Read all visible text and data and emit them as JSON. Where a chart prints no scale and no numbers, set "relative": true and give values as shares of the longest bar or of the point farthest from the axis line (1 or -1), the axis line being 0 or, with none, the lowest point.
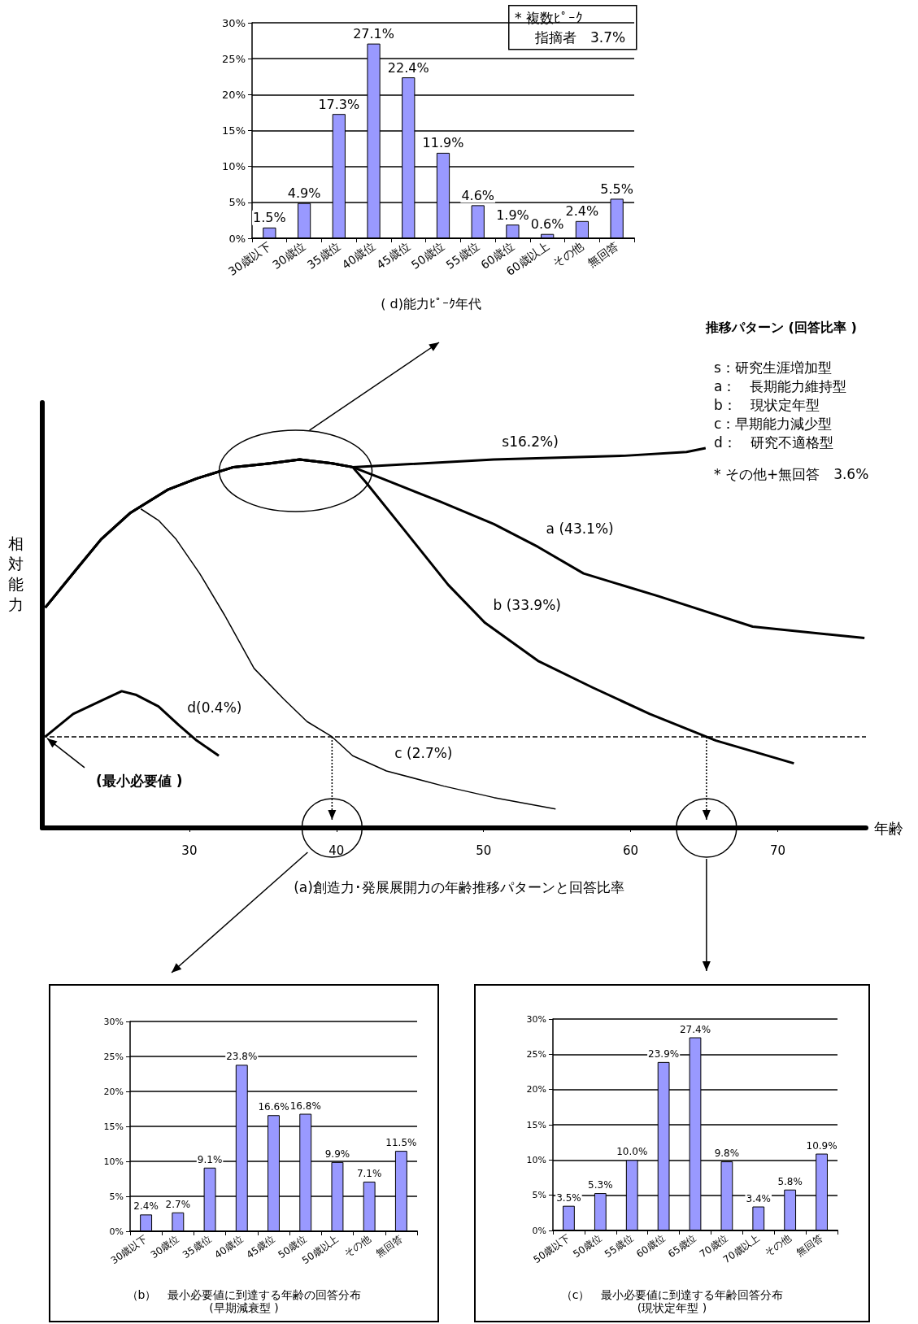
{
  "chart_data": [
    {
      "type": "bar",
      "title": "( d)能力ﾋﾟｰｸ年代",
      "categories": [
        "30歳以下",
        "30歳位",
        "35歳位",
        "40歳位",
        "45歳位",
        "50歳位",
        "55歳位",
        "60歳位",
        "60歳以上",
        "その他",
        "無回答"
      ],
      "values": [
        1.5,
        4.9,
        17.3,
        27.1,
        22.4,
        11.9,
        4.6,
        1.9,
        0.6,
        2.4,
        5.5
      ],
      "value_labels": [
        "1.5%",
        "4.9%",
        "17.3%",
        "27.1%",
        "22.4%",
        "11.9%",
        "4.6%",
        "1.9%",
        "0.6%",
        "2.4%",
        "5.5%"
      ],
      "color": "#9999ff",
      "ylim": [
        0,
        30
      ],
      "yticks": [
        {
          "value": 0,
          "label": "0%"
        },
        {
          "value": 5,
          "label": "5%"
        },
        {
          "value": 10,
          "label": "10%"
        },
        {
          "value": 15,
          "label": "15%"
        },
        {
          "value": 20,
          "label": "20%"
        },
        {
          "value": 25,
          "label": "25%"
        },
        {
          "value": 30,
          "label": "30%"
        }
      ],
      "grid": "y",
      "annotations": [
        "* 複数ﾋﾟｰｸ",
        "指摘者　3.7%"
      ]
    },
    {
      "type": "line",
      "title": "(a)創造力･発展展開力の年齢推移パターンと回答比率",
      "xlabel": "年齢",
      "ylabel": "相対能力",
      "relative": true,
      "marker": "none",
      "xlim": [
        20,
        76
      ],
      "xticks": [
        30,
        40,
        50,
        60,
        70
      ],
      "series": [
        {
          "name": "s16.2%)",
          "color": "#000000",
          "x": [
            20.2,
            22.3,
            24.0,
            26.0,
            28.5,
            30.5,
            33.0,
            35.5,
            37.5,
            39.7,
            41.1,
            50.7,
            59.6,
            63.8,
            65.1
          ],
          "values": [
            0.58,
            0.68,
            0.76,
            0.83,
            0.89,
            0.92,
            0.95,
            0.96,
            0.97,
            0.96,
            0.95,
            0.97,
            0.98,
            0.99,
            1
          ]
        },
        {
          "name": "a (43.1%)",
          "color": "#000000",
          "x": [
            20.2,
            22.3,
            24.0,
            26.0,
            28.5,
            30.5,
            33.0,
            35.5,
            37.5,
            39.7,
            41.1,
            43.1,
            47.0,
            50.7,
            53.7,
            56.8,
            61.9,
            68.3,
            75.9
          ],
          "values": [
            0.58,
            0.68,
            0.76,
            0.83,
            0.89,
            0.92,
            0.95,
            0.96,
            0.97,
            0.96,
            0.95,
            0.92,
            0.86,
            0.8,
            0.74,
            0.67,
            0.61,
            0.53,
            0.5
          ]
        },
        {
          "name": "b (33.9%)",
          "color": "#000000",
          "x": [
            20.2,
            22.3,
            24.0,
            26.0,
            28.5,
            30.5,
            33.0,
            35.5,
            37.5,
            39.7,
            41.1,
            42.0,
            44.5,
            47.6,
            50.1,
            53.7,
            57.4,
            61.3,
            65.8,
            71.1
          ],
          "values": [
            0.58,
            0.68,
            0.76,
            0.83,
            0.89,
            0.92,
            0.95,
            0.96,
            0.97,
            0.96,
            0.95,
            0.91,
            0.79,
            0.64,
            0.54,
            0.44,
            0.37,
            0.3,
            0.23,
            0.17
          ]
        },
        {
          "name": "c (2.7%)",
          "color": "#000000",
          "x": [
            26.7,
            27.9,
            29.1,
            30.7,
            32.4,
            34.4,
            36.4,
            38.0,
            39.7,
            41.1,
            43.4,
            47.3,
            50.7,
            54.9
          ],
          "values": [
            0.84,
            0.81,
            0.76,
            0.67,
            0.56,
            0.42,
            0.34,
            0.28,
            0.24,
            0.19,
            0.15,
            0.11,
            0.08,
            0.05
          ]
        },
        {
          "name": "d(0.4%)",
          "color": "#000000",
          "x": [
            20.2,
            22.1,
            24.3,
            25.4,
            26.4,
            27.9,
            29.3,
            30.5,
            32.0
          ],
          "values": [
            0.24,
            0.3,
            0.34,
            0.36,
            0.35,
            0.32,
            0.27,
            0.23,
            0.19
          ]
        }
      ],
      "ref_lines": [
        {
          "axis": "y",
          "value": 0.24,
          "label": "(最小必要値 )",
          "line_style": "dashed",
          "color": "#000000"
        }
      ],
      "annotations": [
        "推移パターン (回答比率 )",
        "s：研究生涯増加型",
        "a：　長期能力維持型",
        "b：　現状定年型",
        "c：早期能力減少型",
        "d：　研究不適格型",
        "* その他+無回答　3.6%"
      ]
    },
    {
      "type": "bar",
      "title": "（b）　最小必要値に到達する年齢の回答分布",
      "subtitle": "(早期減衰型 )",
      "categories": [
        "30歳以下",
        "30歳位",
        "35歳位",
        "40歳位",
        "45歳位",
        "50歳位",
        "50歳以上",
        "その他",
        "無回答"
      ],
      "values": [
        2.4,
        2.7,
        9.1,
        23.8,
        16.6,
        16.8,
        9.9,
        7.1,
        11.5
      ],
      "value_labels": [
        "2.4%",
        "2.7%",
        "9.1%",
        "23.8%",
        "16.6%",
        "16.8%",
        "9.9%",
        "7.1%",
        "11.5%"
      ],
      "color": "#9999ff",
      "ylim": [
        0,
        30
      ],
      "yticks": [
        {
          "value": 0,
          "label": "0%"
        },
        {
          "value": 5,
          "label": "5%"
        },
        {
          "value": 10,
          "label": "10%"
        },
        {
          "value": 15,
          "label": "15%"
        },
        {
          "value": 20,
          "label": "20%"
        },
        {
          "value": 25,
          "label": "25%"
        },
        {
          "value": 30,
          "label": "30%"
        }
      ],
      "grid": "y"
    },
    {
      "type": "bar",
      "title": "（c）　最小必要値に到達する年齢回答分布",
      "subtitle": "(現状定年型 )",
      "categories": [
        "50歳以下",
        "50歳位",
        "55歳位",
        "60歳位",
        "65歳位",
        "70歳位",
        "70歳以上",
        "その他",
        "無回答"
      ],
      "values": [
        3.5,
        5.3,
        10.0,
        23.9,
        27.4,
        9.8,
        3.4,
        5.8,
        10.9
      ],
      "value_labels": [
        "3.5%",
        "5.3%",
        "10.0%",
        "23.9%",
        "27.4%",
        "9.8%",
        "3.4%",
        "5.8%",
        "10.9%"
      ],
      "color": "#9999ff",
      "ylim": [
        0,
        30
      ],
      "yticks": [
        {
          "value": 0,
          "label": "0%"
        },
        {
          "value": 5,
          "label": "5%"
        },
        {
          "value": 10,
          "label": "10%"
        },
        {
          "value": 15,
          "label": "15%"
        },
        {
          "value": 20,
          "label": "20%"
        },
        {
          "value": 25,
          "label": "25%"
        },
        {
          "value": 30,
          "label": "30%"
        }
      ],
      "grid": "y"
    }
  ]
}
